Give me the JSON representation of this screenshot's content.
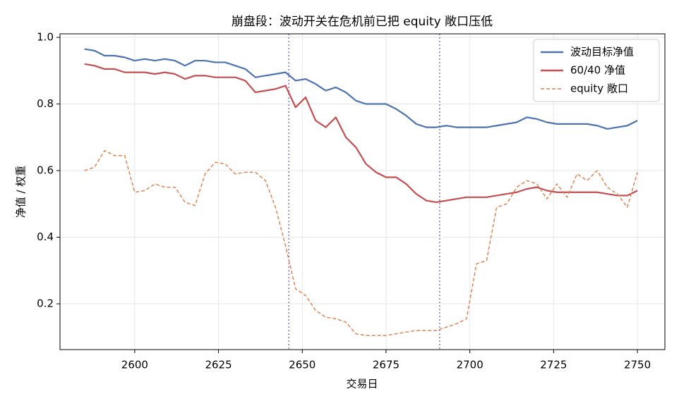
{
  "chart_data": {
    "type": "line",
    "title": "崩盘段：波动开关在危机前已把 equity 敞口压低",
    "xlabel": "交易日",
    "ylabel": "净值 / 权重",
    "x": [
      2585,
      2588,
      2591,
      2594,
      2597,
      2600,
      2603,
      2606,
      2609,
      2612,
      2615,
      2618,
      2621,
      2624,
      2627,
      2630,
      2633,
      2636,
      2639,
      2642,
      2645,
      2648,
      2651,
      2654,
      2657,
      2660,
      2663,
      2666,
      2669,
      2672,
      2675,
      2678,
      2681,
      2684,
      2687,
      2690,
      2693,
      2696,
      2699,
      2702,
      2705,
      2708,
      2711,
      2714,
      2717,
      2720,
      2723,
      2726,
      2729,
      2732,
      2735,
      2738,
      2741,
      2744,
      2747,
      2750
    ],
    "series": [
      {
        "name": "波动目标净值",
        "color": "#4c72b0",
        "linestyle": "solid",
        "values": [
          0.965,
          0.96,
          0.945,
          0.945,
          0.94,
          0.93,
          0.935,
          0.93,
          0.935,
          0.93,
          0.915,
          0.93,
          0.93,
          0.925,
          0.925,
          0.915,
          0.905,
          0.88,
          0.885,
          0.89,
          0.895,
          0.87,
          0.875,
          0.86,
          0.84,
          0.85,
          0.835,
          0.81,
          0.8,
          0.8,
          0.8,
          0.785,
          0.765,
          0.74,
          0.73,
          0.73,
          0.735,
          0.73,
          0.73,
          0.73,
          0.73,
          0.735,
          0.74,
          0.745,
          0.76,
          0.755,
          0.745,
          0.74,
          0.74,
          0.74,
          0.74,
          0.735,
          0.725,
          0.73,
          0.735,
          0.75
        ]
      },
      {
        "name": "60/40 净值",
        "color": "#c44e52",
        "linestyle": "solid",
        "values": [
          0.92,
          0.915,
          0.905,
          0.905,
          0.895,
          0.895,
          0.895,
          0.89,
          0.895,
          0.89,
          0.875,
          0.885,
          0.885,
          0.88,
          0.88,
          0.88,
          0.87,
          0.835,
          0.84,
          0.845,
          0.855,
          0.79,
          0.82,
          0.75,
          0.73,
          0.76,
          0.7,
          0.67,
          0.62,
          0.595,
          0.58,
          0.58,
          0.56,
          0.53,
          0.51,
          0.505,
          0.51,
          0.515,
          0.52,
          0.52,
          0.52,
          0.525,
          0.53,
          0.535,
          0.545,
          0.55,
          0.54,
          0.535,
          0.535,
          0.535,
          0.535,
          0.535,
          0.53,
          0.525,
          0.525,
          0.54
        ]
      },
      {
        "name": "equity 敞口",
        "color": "#dd8452",
        "linestyle": "dashed",
        "values": [
          0.6,
          0.61,
          0.66,
          0.645,
          0.645,
          0.535,
          0.54,
          0.56,
          0.55,
          0.55,
          0.505,
          0.495,
          0.59,
          0.625,
          0.62,
          0.59,
          0.595,
          0.595,
          0.57,
          0.49,
          0.375,
          0.245,
          0.225,
          0.18,
          0.16,
          0.155,
          0.145,
          0.11,
          0.105,
          0.105,
          0.105,
          0.11,
          0.115,
          0.12,
          0.12,
          0.12,
          0.13,
          0.14,
          0.155,
          0.32,
          0.33,
          0.49,
          0.5,
          0.55,
          0.57,
          0.56,
          0.515,
          0.56,
          0.52,
          0.59,
          0.57,
          0.6,
          0.55,
          0.53,
          0.49,
          0.595
        ]
      }
    ],
    "vlines": [
      2646,
      2691
    ],
    "vline_color": "#8172b3",
    "xlim": [
      2577.7,
      2758.2
    ],
    "ylim": [
      0.0625,
      1.0106
    ],
    "xticks": [
      2600,
      2625,
      2650,
      2675,
      2700,
      2725,
      2750
    ],
    "yticks": [
      0.2,
      0.4,
      0.6,
      0.8,
      {
        "value": 1,
        "label": "1.0"
      }
    ],
    "grid": true,
    "legend": "upper right"
  }
}
